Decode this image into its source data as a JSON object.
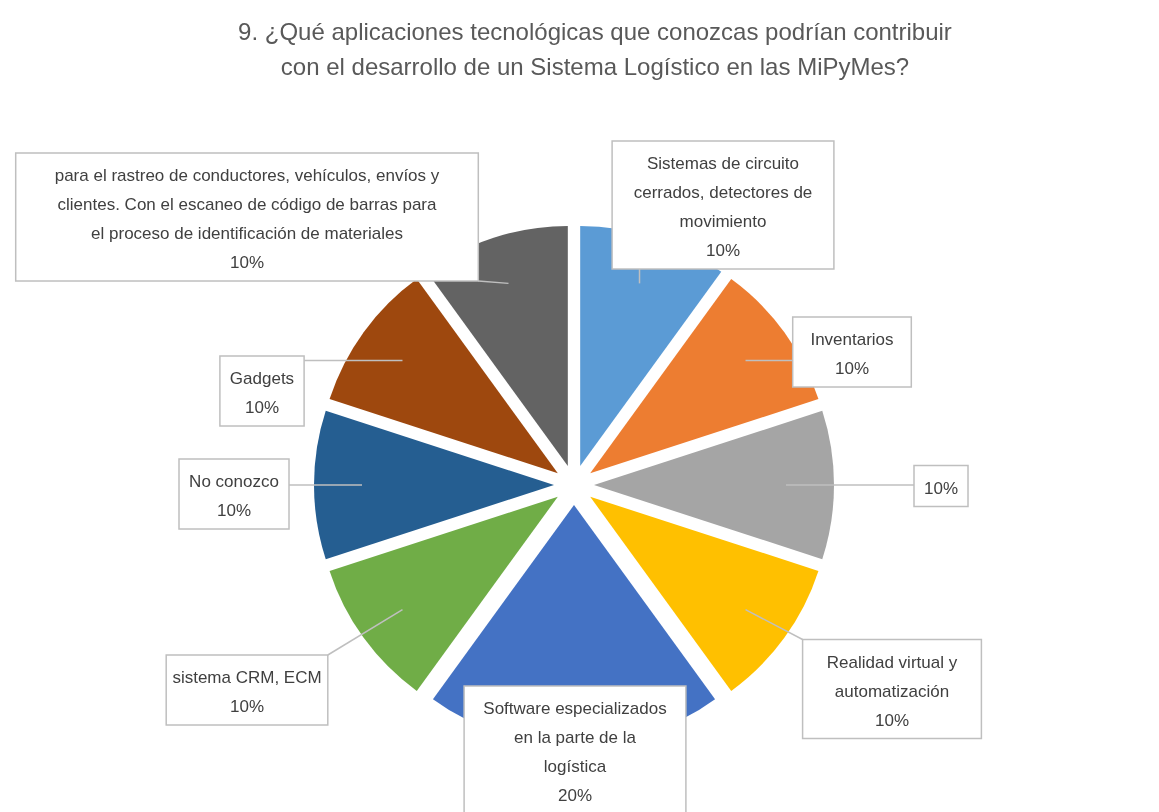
{
  "chart_data": {
    "type": "pie",
    "title": "9. ¿Qué aplicaciones tecnológicas que conozcas podrían contribuir con el desarrollo de un Sistema Logístico en las MiPyMes?",
    "categories": [
      "Sistemas de circuito cerrados, detectores de movimiento",
      "Inventarios",
      null,
      "Realidad virtual y automatización",
      "Software especializados en la parte de la logística",
      "sistema CRM, ECM",
      "No conozco",
      "Gadgets",
      "para el rastreo de conductores, vehículos, envíos y clientes. Con el escaneo de código de barras para el proceso de identificación de materiales"
    ],
    "values": [
      10,
      10,
      10,
      10,
      20,
      10,
      10,
      10,
      10
    ],
    "value_labels": [
      "10%",
      "10%",
      "10%",
      "10%",
      "20%",
      "10%",
      "10%",
      "10%",
      "10%"
    ],
    "colors": [
      "#5b9bd5",
      "#ed7d31",
      "#a5a5a5",
      "#ffc000",
      "#4472c4",
      "#70ad47",
      "#255e91",
      "#9e480e",
      "#636363"
    ]
  }
}
